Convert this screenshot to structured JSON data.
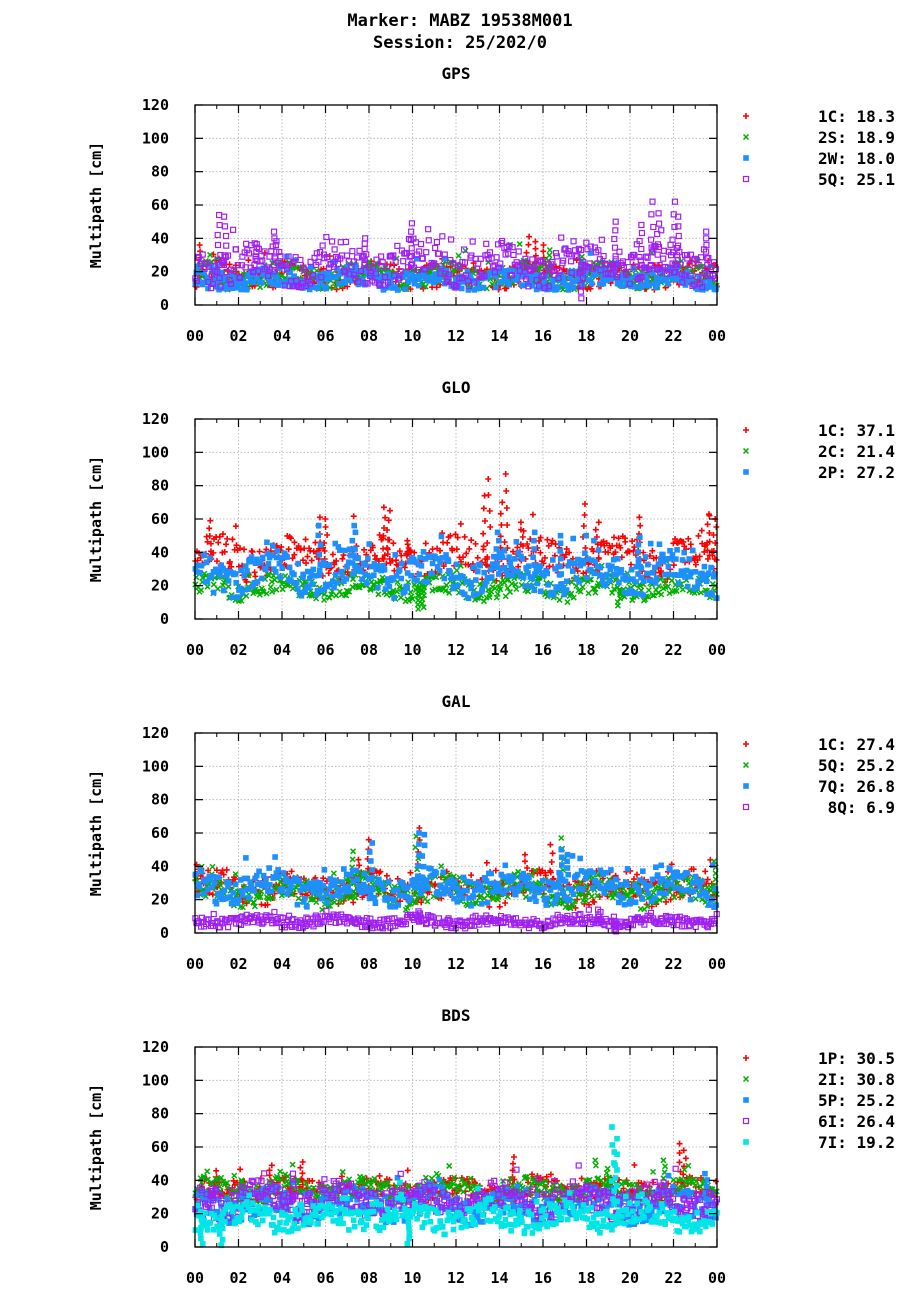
{
  "header": {
    "marker_line": "Marker: MABZ 19538M001",
    "session_line": "Session: 25/202/0"
  },
  "colors": {
    "red": "#ff0000",
    "green": "#00b000",
    "blue": "#1e8fff",
    "purple": "#a020f0",
    "cyan": "#00e5e5",
    "grid": "#b0b0b0"
  },
  "chart_data": [
    {
      "type": "scatter",
      "title": "GPS",
      "ylabel": "Multipath [cm]",
      "xlim": [
        0,
        24
      ],
      "ylim": [
        0,
        120
      ],
      "yticks": [
        0,
        20,
        40,
        60,
        80,
        100,
        120
      ],
      "xtick_labels": [
        "00",
        "02",
        "04",
        "06",
        "08",
        "10",
        "12",
        "14",
        "16",
        "18",
        "20",
        "22",
        "00"
      ],
      "grid": true,
      "legend_position": "right",
      "series": [
        {
          "name": "1C",
          "value_label": "18.3",
          "color": "red",
          "marker": "plus",
          "base": 17,
          "band": 14,
          "floor": 9,
          "spikes": [
            [
              15.3,
              41
            ],
            [
              15.6,
              38
            ],
            [
              16,
              36
            ],
            [
              0.2,
              36
            ]
          ]
        },
        {
          "name": "2S",
          "value_label": "18.9",
          "color": "green",
          "marker": "cross",
          "base": 17,
          "band": 13,
          "floor": 9,
          "spikes": [
            [
              17.8,
              29
            ],
            [
              16.3,
              33
            ]
          ]
        },
        {
          "name": "2W",
          "value_label": "18.0",
          "color": "blue",
          "marker": "square",
          "base": 15,
          "band": 11,
          "floor": 9,
          "spikes": [
            [
              1.0,
              23
            ],
            [
              18.8,
              21
            ]
          ]
        },
        {
          "name": "5Q",
          "value_label": "25.1",
          "color": "purple",
          "marker": "opensquare",
          "base": 24,
          "band": 20,
          "floor": 10,
          "spikes": [
            [
              1.1,
              54
            ],
            [
              1.4,
              53
            ],
            [
              3.7,
              44
            ],
            [
              9.9,
              49
            ],
            [
              2.8,
              37
            ],
            [
              7.8,
              40
            ],
            [
              21.0,
              62
            ],
            [
              21.3,
              55
            ],
            [
              22.0,
              62
            ],
            [
              22.2,
              53
            ],
            [
              19.3,
              50
            ],
            [
              17.8,
              4
            ],
            [
              20.5,
              48
            ],
            [
              23.5,
              44
            ]
          ]
        }
      ]
    },
    {
      "type": "scatter",
      "title": "GLO",
      "ylabel": "Multipath [cm]",
      "xlim": [
        0,
        24
      ],
      "ylim": [
        0,
        120
      ],
      "yticks": [
        0,
        20,
        40,
        60,
        80,
        100,
        120
      ],
      "xtick_labels": [
        "00",
        "02",
        "04",
        "06",
        "08",
        "10",
        "12",
        "14",
        "16",
        "18",
        "20",
        "22",
        "00"
      ],
      "grid": true,
      "legend_position": "right",
      "series": [
        {
          "name": "1C",
          "value_label": "37.1",
          "color": "red",
          "marker": "plus",
          "base": 36,
          "band": 20,
          "floor": 20,
          "spikes": [
            [
              0.7,
              59
            ],
            [
              5.7,
              61
            ],
            [
              6.0,
              60
            ],
            [
              8.7,
              67
            ],
            [
              8.9,
              65
            ],
            [
              13.3,
              74
            ],
            [
              13.5,
              84
            ],
            [
              14.3,
              87
            ],
            [
              14.1,
              70
            ],
            [
              15.0,
              58
            ],
            [
              17.9,
              69
            ],
            [
              18.5,
              58
            ],
            [
              20.4,
              61
            ],
            [
              23.6,
              62
            ],
            [
              23.9,
              60
            ],
            [
              9.8,
              47
            ]
          ]
        },
        {
          "name": "2C",
          "value_label": "21.4",
          "color": "green",
          "marker": "cross",
          "base": 19,
          "band": 12,
          "floor": 6,
          "spikes": [
            [
              10.3,
              6
            ],
            [
              10.5,
              7
            ],
            [
              19.5,
              8
            ]
          ]
        },
        {
          "name": "2P",
          "value_label": "27.2",
          "color": "blue",
          "marker": "square",
          "base": 27,
          "band": 20,
          "floor": 10,
          "spikes": [
            [
              5.7,
              56
            ],
            [
              7.3,
              52
            ],
            [
              13.9,
              52
            ],
            [
              15.6,
              52
            ],
            [
              16.8,
              50
            ],
            [
              20.4,
              49
            ]
          ]
        }
      ]
    },
    {
      "type": "scatter",
      "title": "GAL",
      "ylabel": "Multipath [cm]",
      "xlim": [
        0,
        24
      ],
      "ylim": [
        0,
        120
      ],
      "yticks": [
        0,
        20,
        40,
        60,
        80,
        100,
        120
      ],
      "xtick_labels": [
        "00",
        "02",
        "04",
        "06",
        "08",
        "10",
        "12",
        "14",
        "16",
        "18",
        "20",
        "22",
        "00"
      ],
      "grid": true,
      "legend_position": "right",
      "series": [
        {
          "name": "1C",
          "value_label": "27.4",
          "color": "red",
          "marker": "plus",
          "base": 27,
          "band": 16,
          "floor": 15,
          "spikes": [
            [
              10.3,
              63
            ],
            [
              8.0,
              56
            ],
            [
              15.2,
              47
            ],
            [
              16.4,
              53
            ],
            [
              7.5,
              44
            ],
            [
              0.1,
              41
            ]
          ]
        },
        {
          "name": "5Q",
          "value_label": "25.2",
          "color": "green",
          "marker": "cross",
          "base": 25,
          "band": 15,
          "floor": 13,
          "spikes": [
            [
              7.3,
              49
            ],
            [
              10.2,
              58
            ],
            [
              16.9,
              57
            ],
            [
              23.9,
              43
            ]
          ]
        },
        {
          "name": "7Q",
          "value_label": "26.8",
          "color": "blue",
          "marker": "square",
          "base": 27,
          "band": 16,
          "floor": 15,
          "spikes": [
            [
              8.1,
              54
            ],
            [
              10.3,
              60
            ],
            [
              10.5,
              59
            ],
            [
              16.8,
              50
            ],
            [
              17.1,
              47
            ]
          ]
        },
        {
          "name": "8Q",
          "value_label": "6.9",
          "color": "purple",
          "marker": "opensquare",
          "base": 7,
          "band": 6,
          "floor": 1,
          "spikes": [
            [
              18.6,
              14
            ],
            [
              10.3,
              13
            ],
            [
              19.3,
              1
            ]
          ]
        }
      ]
    },
    {
      "type": "scatter",
      "title": "BDS",
      "ylabel": "Multipath [cm]",
      "xlim": [
        0,
        24
      ],
      "ylim": [
        0,
        120
      ],
      "yticks": [
        0,
        20,
        40,
        60,
        80,
        100,
        120
      ],
      "xtick_labels": [
        "00",
        "02",
        "04",
        "06",
        "08",
        "10",
        "12",
        "14",
        "16",
        "18",
        "20",
        "22",
        "00"
      ],
      "grid": true,
      "legend_position": "right",
      "series": [
        {
          "name": "1P",
          "value_label": "30.5",
          "color": "red",
          "marker": "plus",
          "base": 34,
          "band": 12,
          "floor": 24,
          "spikes": [
            [
              22.3,
              62
            ],
            [
              22.5,
              58
            ],
            [
              4.9,
              51
            ],
            [
              14.6,
              54
            ],
            [
              1.0,
              42
            ],
            [
              3.5,
              49
            ]
          ]
        },
        {
          "name": "2I",
          "value_label": "30.8",
          "color": "green",
          "marker": "cross",
          "base": 34,
          "band": 12,
          "floor": 22,
          "spikes": [
            [
              21.6,
              52
            ],
            [
              19.0,
              47
            ],
            [
              2.2,
              40
            ]
          ]
        },
        {
          "name": "5P",
          "value_label": "25.2",
          "color": "blue",
          "marker": "square",
          "base": 25,
          "band": 16,
          "floor": 8,
          "spikes": [
            [
              23.5,
              44
            ]
          ]
        },
        {
          "name": "6I",
          "value_label": "26.4",
          "color": "purple",
          "marker": "opensquare",
          "base": 28,
          "band": 16,
          "floor": 12,
          "spikes": [
            [
              0.8,
              35
            ],
            [
              4.5,
              44
            ]
          ]
        },
        {
          "name": "7I",
          "value_label": "19.2",
          "color": "cyan",
          "marker": "square",
          "base": 18,
          "band": 14,
          "floor": 2,
          "spikes": [
            [
              19.2,
              72
            ],
            [
              19.4,
              65
            ],
            [
              19.3,
              57
            ],
            [
              0.3,
              2
            ],
            [
              1.2,
              1
            ],
            [
              9.8,
              2
            ]
          ]
        }
      ]
    }
  ]
}
